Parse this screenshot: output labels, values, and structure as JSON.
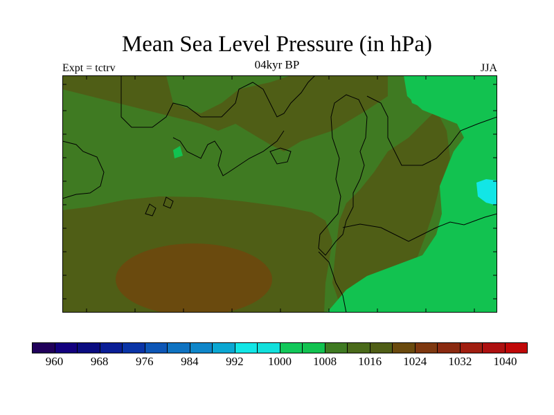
{
  "title": "Mean Sea Level Pressure (in hPa)",
  "subtitle": "04kyr BP",
  "left_label": "Expt = tctrv",
  "right_label": "JJA",
  "colorbar": {
    "colors": [
      "#20005a",
      "#13007e",
      "#0a0c80",
      "#0a1e96",
      "#0a34a6",
      "#0d56b6",
      "#0f73c1",
      "#0f86c9",
      "#0ba7d2",
      "#12e6e6",
      "#12e0dc",
      "#12c85a",
      "#12c250",
      "#3f7a22",
      "#4a6a1a",
      "#4f5e16",
      "#6a4a0e",
      "#7e3810",
      "#8a2a10",
      "#a01e10",
      "#ad1010",
      "#c00808"
    ],
    "ticks": [
      "960",
      "968",
      "976",
      "984",
      "992",
      "1000",
      "1008",
      "1016",
      "1024",
      "1032",
      "1040"
    ]
  },
  "map": {
    "field_colors": {
      "background": "#3f7a22",
      "high_1016": "#4f5e16",
      "high_1020": "#6a4a0e",
      "low_1008": "#12c250",
      "low_1000": "#12e6e6"
    }
  }
}
